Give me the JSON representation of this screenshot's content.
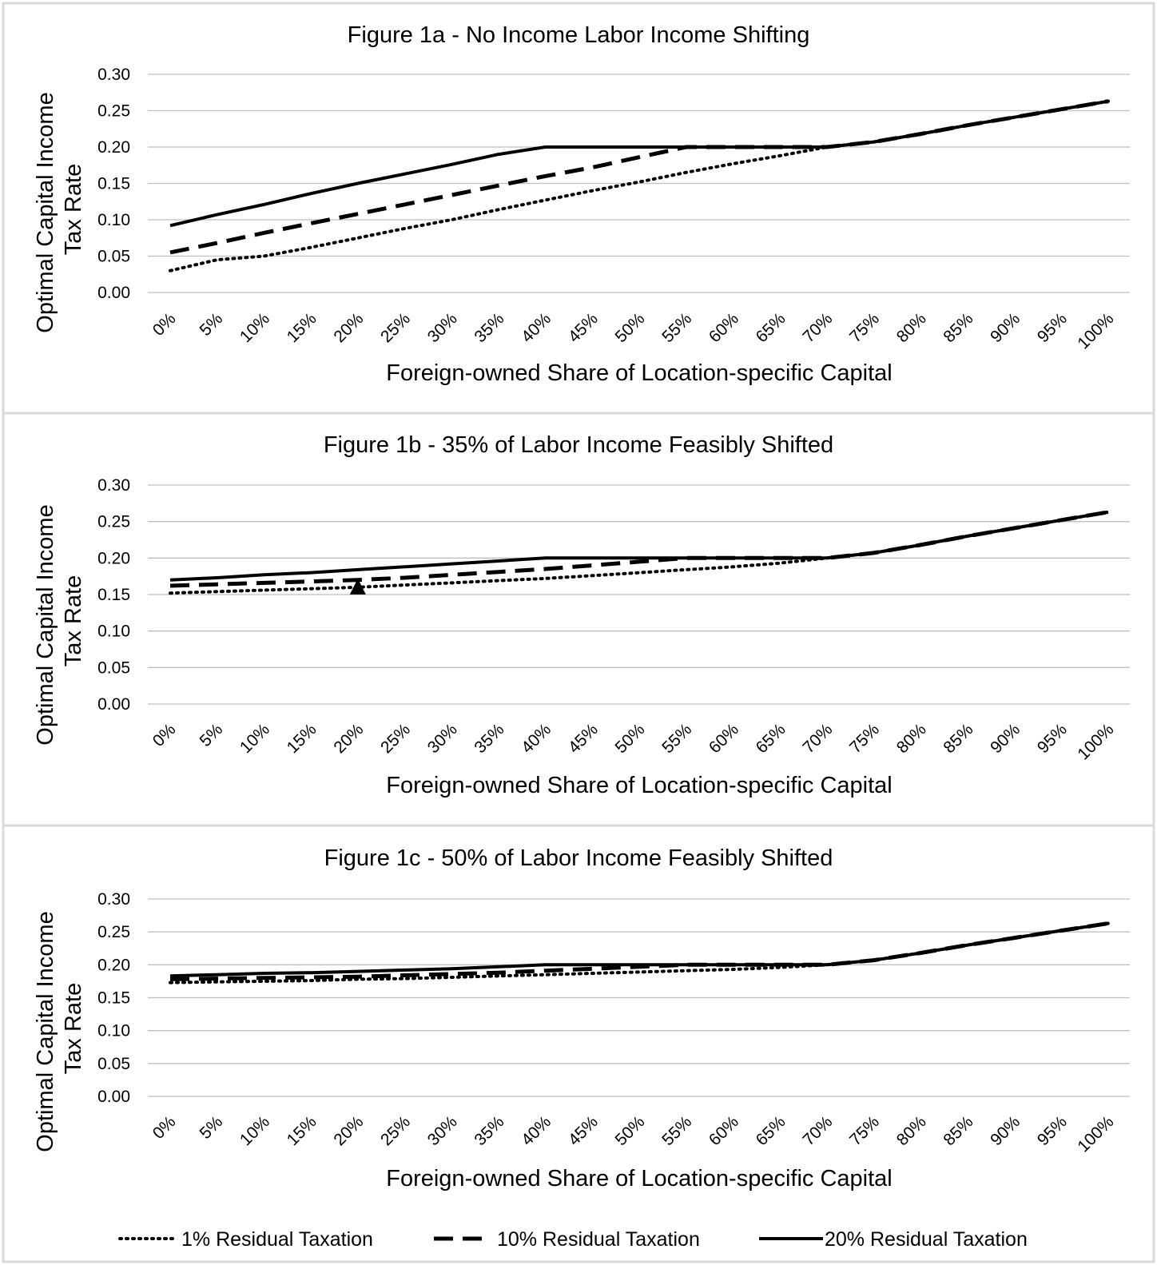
{
  "chart_data": [
    {
      "type": "line",
      "title": "Figure 1a - No Income Labor Income Shifting",
      "xlabel": "Foreign-owned Share of Location-specific Capital",
      "ylabel": [
        "Optimal Capital Income",
        "Tax  Rate"
      ],
      "ylim": [
        0,
        0.3
      ],
      "yticks": [
        "0.30",
        "0.25",
        "0.20",
        "0.15",
        "0.10",
        "0.05",
        "0.00"
      ],
      "grid": true,
      "categories": [
        "0%",
        "5%",
        "10%",
        "15%",
        "20%",
        "25%",
        "30%",
        "35%",
        "40%",
        "45%",
        "50%",
        "55%",
        "60%",
        "65%",
        "70%",
        "75%",
        "80%",
        "85%",
        "90%",
        "95%",
        "100%"
      ],
      "series": [
        {
          "name": "1% Residual Taxation",
          "style": "dotted",
          "values": [
            0.03,
            0.045,
            0.05,
            0.062,
            0.075,
            0.088,
            0.1,
            0.114,
            0.127,
            0.14,
            0.152,
            0.165,
            0.177,
            0.188,
            0.2,
            0.207,
            0.218,
            0.23,
            0.241,
            0.252,
            0.263
          ]
        },
        {
          "name": "10% Residual Taxation",
          "style": "dashed",
          "values": [
            0.055,
            0.068,
            0.082,
            0.095,
            0.108,
            0.121,
            0.134,
            0.147,
            0.16,
            0.172,
            0.186,
            0.2,
            0.2,
            0.2,
            0.2,
            0.207,
            0.218,
            0.23,
            0.241,
            0.252,
            0.263
          ]
        },
        {
          "name": "20% Residual Taxation",
          "style": "solid",
          "values": [
            0.092,
            0.107,
            0.121,
            0.136,
            0.15,
            0.163,
            0.176,
            0.19,
            0.2,
            0.2,
            0.2,
            0.2,
            0.2,
            0.2,
            0.2,
            0.207,
            0.218,
            0.23,
            0.241,
            0.252,
            0.263
          ]
        }
      ]
    },
    {
      "type": "line",
      "title": "Figure 1b - 35% of Labor Income Feasibly Shifted",
      "xlabel": "Foreign-owned Share of Location-specific Capital",
      "ylabel": [
        "Optimal Capital Income",
        "Tax  Rate"
      ],
      "ylim": [
        0,
        0.3
      ],
      "yticks": [
        "0.30",
        "0.25",
        "0.20",
        "0.15",
        "0.10",
        "0.05",
        "0.00"
      ],
      "grid": true,
      "categories": [
        "0%",
        "5%",
        "10%",
        "15%",
        "20%",
        "25%",
        "30%",
        "35%",
        "40%",
        "45%",
        "50%",
        "55%",
        "60%",
        "65%",
        "70%",
        "75%",
        "80%",
        "85%",
        "90%",
        "95%",
        "100%"
      ],
      "series": [
        {
          "name": "1% Residual Taxation",
          "style": "dotted",
          "values": [
            0.152,
            0.154,
            0.156,
            0.158,
            0.16,
            0.163,
            0.166,
            0.169,
            0.172,
            0.176,
            0.18,
            0.184,
            0.188,
            0.193,
            0.2,
            0.207,
            0.218,
            0.23,
            0.241,
            0.252,
            0.263
          ]
        },
        {
          "name": "10% Residual Taxation",
          "style": "dashed",
          "values": [
            0.162,
            0.164,
            0.166,
            0.168,
            0.17,
            0.173,
            0.177,
            0.181,
            0.185,
            0.19,
            0.195,
            0.2,
            0.2,
            0.2,
            0.2,
            0.207,
            0.218,
            0.23,
            0.241,
            0.252,
            0.263
          ]
        },
        {
          "name": "20% Residual Taxation",
          "style": "solid",
          "values": [
            0.17,
            0.173,
            0.177,
            0.18,
            0.184,
            0.188,
            0.192,
            0.196,
            0.2,
            0.2,
            0.2,
            0.2,
            0.2,
            0.2,
            0.2,
            0.207,
            0.218,
            0.23,
            0.241,
            0.252,
            0.263
          ]
        }
      ],
      "annotations": [
        {
          "shape": "triangle",
          "x": "20%",
          "y": 0.16
        }
      ]
    },
    {
      "type": "line",
      "title": "Figure 1c - 50% of Labor Income Feasibly Shifted",
      "xlabel": "Foreign-owned Share of Location-specific Capital",
      "ylabel": [
        "Optimal Capital Income",
        "Tax  Rate"
      ],
      "ylim": [
        0,
        0.3
      ],
      "yticks": [
        "0.30",
        "0.25",
        "0.20",
        "0.15",
        "0.10",
        "0.05",
        "0.00"
      ],
      "grid": true,
      "categories": [
        "0%",
        "5%",
        "10%",
        "15%",
        "20%",
        "25%",
        "30%",
        "35%",
        "40%",
        "45%",
        "50%",
        "55%",
        "60%",
        "65%",
        "70%",
        "75%",
        "80%",
        "85%",
        "90%",
        "95%",
        "100%"
      ],
      "series": [
        {
          "name": "1% Residual Taxation",
          "style": "dotted",
          "values": [
            0.173,
            0.174,
            0.175,
            0.176,
            0.178,
            0.179,
            0.181,
            0.183,
            0.185,
            0.187,
            0.189,
            0.191,
            0.193,
            0.196,
            0.2,
            0.207,
            0.218,
            0.23,
            0.241,
            0.252,
            0.263
          ]
        },
        {
          "name": "10% Residual Taxation",
          "style": "dashed",
          "values": [
            0.178,
            0.179,
            0.18,
            0.181,
            0.182,
            0.184,
            0.186,
            0.188,
            0.191,
            0.194,
            0.197,
            0.2,
            0.2,
            0.2,
            0.2,
            0.207,
            0.218,
            0.23,
            0.241,
            0.252,
            0.263
          ]
        },
        {
          "name": "20% Residual Taxation",
          "style": "solid",
          "values": [
            0.183,
            0.185,
            0.187,
            0.188,
            0.19,
            0.192,
            0.194,
            0.197,
            0.2,
            0.2,
            0.2,
            0.2,
            0.2,
            0.2,
            0.2,
            0.207,
            0.218,
            0.23,
            0.241,
            0.252,
            0.263
          ]
        }
      ]
    }
  ],
  "legend": {
    "placement": "bottom",
    "items": [
      {
        "label": "1% Residual Taxation",
        "style": "dotted"
      },
      {
        "label": "10% Residual Taxation",
        "style": "dashed"
      },
      {
        "label": "20% Residual Taxation",
        "style": "solid"
      }
    ]
  },
  "colors": {
    "line": "#000000",
    "grid": "#bfbfbf",
    "panel_border": "#d9d9d9",
    "background": "#ffffff"
  }
}
